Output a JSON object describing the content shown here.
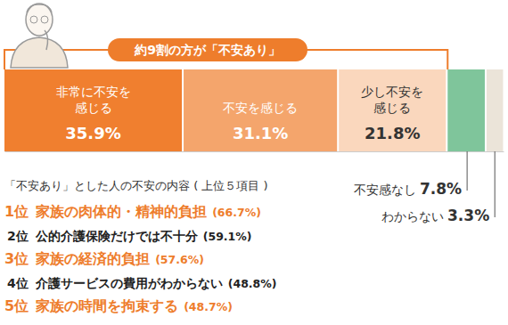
{
  "chart_data": {
    "type": "bar",
    "orientation": "horizontal",
    "stacked": true,
    "data_labels": true,
    "tick_labels": false,
    "annotation": "約9割の方が「不安あり」",
    "categories": [
      null
    ],
    "xlim": [
      0,
      100
    ],
    "series": [
      {
        "name": "非常に不安を\n感じる",
        "color": "#f07f2f",
        "values": [
          35.9
        ],
        "value_labels": [
          "35.9%"
        ]
      },
      {
        "name": "不安を感じる",
        "color": "#f4a56c",
        "values": [
          31.1
        ],
        "value_labels": [
          "31.1%"
        ]
      },
      {
        "name": "少し不安を\n感じる",
        "color": "#fad7bd",
        "values": [
          21.8
        ],
        "value_labels": [
          "21.8%"
        ]
      },
      {
        "name": "不安感なし",
        "color": "#7fc59b",
        "values": [
          7.8
        ],
        "value_labels": [
          "7.8%"
        ]
      },
      {
        "name": "わからない",
        "color": "#ebe4d9",
        "values": [
          3.3
        ],
        "value_labels": [
          "3.3%"
        ]
      }
    ]
  },
  "ranking": {
    "title": "「不安あり」とした人の不安の内容 ( 上位５項目 )",
    "items": [
      {
        "rank": "1位",
        "label": "家族の肉体的・精神的負担",
        "share": "(66.7%)"
      },
      {
        "rank": "2位",
        "label": "公的介護保険だけでは不十分",
        "share": "(59.1%)"
      },
      {
        "rank": "3位",
        "label": "家族の経済的負担",
        "share": "(57.6%)"
      },
      {
        "rank": "4位",
        "label": "介護サービスの費用がわからない",
        "share": "(48.8%)"
      },
      {
        "rank": "5位",
        "label": "家族の時間を拘束する",
        "share": "(48.7%)"
      }
    ]
  }
}
